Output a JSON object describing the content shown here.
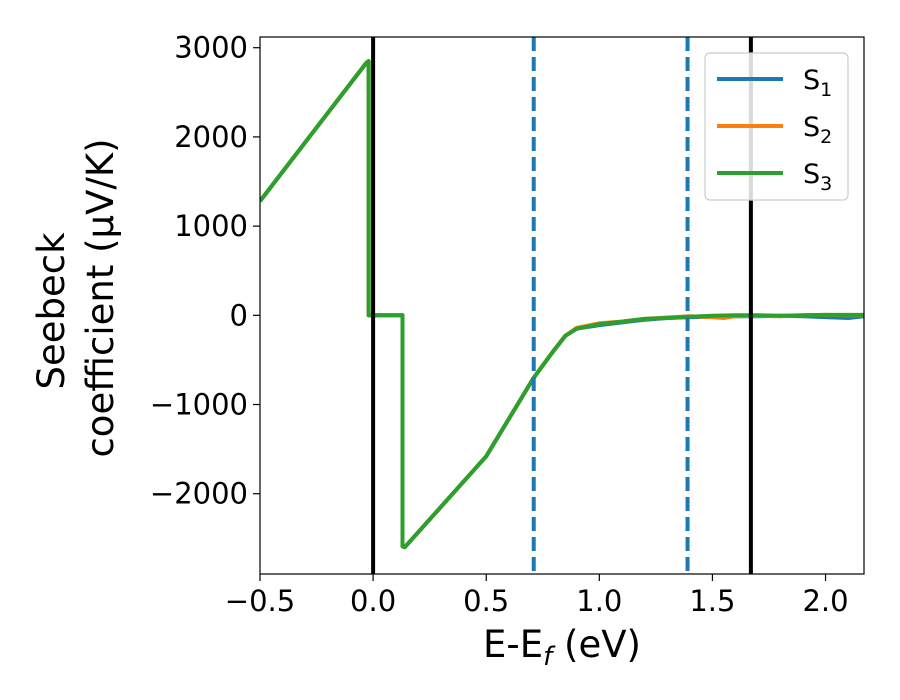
{
  "chart_data": {
    "type": "line",
    "xlabel_main": "E-E",
    "xlabel_sub": "f",
    "xlabel_unit": " (eV)",
    "ylabel_line1": "Seebeck",
    "ylabel_line2": "coefficient  (μV/K)",
    "xlim": [
      -0.5,
      2.17
    ],
    "ylim": [
      -2900,
      3120
    ],
    "x_ticks": [
      {
        "value": -0.5,
        "label": "−0.5"
      },
      {
        "value": 0.0,
        "label": "0.0"
      },
      {
        "value": 0.5,
        "label": "0.5"
      },
      {
        "value": 1.0,
        "label": "1.0"
      },
      {
        "value": 1.5,
        "label": "1.5"
      },
      {
        "value": 2.0,
        "label": "2.0"
      }
    ],
    "y_ticks": [
      {
        "value": -2000,
        "label": "−2000"
      },
      {
        "value": -1000,
        "label": "−1000"
      },
      {
        "value": 0,
        "label": "0"
      },
      {
        "value": 1000,
        "label": "1000"
      },
      {
        "value": 2000,
        "label": "2000"
      },
      {
        "value": 3000,
        "label": "3000"
      }
    ],
    "vlines": [
      {
        "x": 0.0,
        "style": "solid",
        "color": "#000000"
      },
      {
        "x": 1.67,
        "style": "solid",
        "color": "#000000"
      },
      {
        "x": 0.71,
        "style": "dashed",
        "color": "#1f77b4"
      },
      {
        "x": 1.39,
        "style": "dashed",
        "color": "#1f77b4"
      }
    ],
    "legend_position": "top-right",
    "series": [
      {
        "name": "S",
        "sub": "1",
        "color": "#1f77b4",
        "points": [
          [
            -0.5,
            1280
          ],
          [
            -0.03,
            2830
          ],
          [
            -0.02,
            2850
          ],
          [
            -0.02,
            0
          ],
          [
            0.13,
            0
          ],
          [
            0.13,
            -2590
          ],
          [
            0.14,
            -2600
          ],
          [
            0.5,
            -1580
          ],
          [
            0.71,
            -700
          ],
          [
            0.8,
            -390
          ],
          [
            0.85,
            -230
          ],
          [
            0.9,
            -150
          ],
          [
            1.0,
            -110
          ],
          [
            1.1,
            -80
          ],
          [
            1.2,
            -50
          ],
          [
            1.3,
            -30
          ],
          [
            1.4,
            -20
          ],
          [
            1.5,
            -15
          ],
          [
            1.6,
            -10
          ],
          [
            1.7,
            -10
          ],
          [
            1.8,
            -5
          ],
          [
            1.9,
            -10
          ],
          [
            2.0,
            -20
          ],
          [
            2.1,
            -30
          ],
          [
            2.17,
            -10
          ]
        ]
      },
      {
        "name": "S",
        "sub": "2",
        "color": "#ff7f0e",
        "points": [
          [
            -0.5,
            1280
          ],
          [
            -0.03,
            2830
          ],
          [
            -0.02,
            2850
          ],
          [
            -0.02,
            0
          ],
          [
            0.13,
            0
          ],
          [
            0.13,
            -2590
          ],
          [
            0.14,
            -2600
          ],
          [
            0.5,
            -1580
          ],
          [
            0.71,
            -700
          ],
          [
            0.8,
            -390
          ],
          [
            0.85,
            -230
          ],
          [
            0.9,
            -140
          ],
          [
            1.0,
            -90
          ],
          [
            1.1,
            -70
          ],
          [
            1.2,
            -40
          ],
          [
            1.3,
            -25
          ],
          [
            1.4,
            -10
          ],
          [
            1.5,
            -20
          ],
          [
            1.55,
            -30
          ],
          [
            1.6,
            -10
          ],
          [
            1.7,
            -5
          ],
          [
            1.8,
            -10
          ],
          [
            1.9,
            0
          ],
          [
            2.0,
            5
          ],
          [
            2.1,
            0
          ],
          [
            2.17,
            0
          ]
        ]
      },
      {
        "name": "S",
        "sub": "3",
        "color": "#2ca02c",
        "points": [
          [
            -0.5,
            1280
          ],
          [
            -0.03,
            2830
          ],
          [
            -0.02,
            2850
          ],
          [
            -0.02,
            0
          ],
          [
            0.13,
            0
          ],
          [
            0.13,
            -2590
          ],
          [
            0.14,
            -2600
          ],
          [
            0.5,
            -1580
          ],
          [
            0.71,
            -700
          ],
          [
            0.8,
            -390
          ],
          [
            0.85,
            -230
          ],
          [
            0.9,
            -150
          ],
          [
            1.0,
            -100
          ],
          [
            1.1,
            -70
          ],
          [
            1.2,
            -40
          ],
          [
            1.3,
            -30
          ],
          [
            1.4,
            -15
          ],
          [
            1.5,
            -5
          ],
          [
            1.6,
            0
          ],
          [
            1.7,
            0
          ],
          [
            1.8,
            -5
          ],
          [
            1.9,
            0
          ],
          [
            2.0,
            5
          ],
          [
            2.1,
            5
          ],
          [
            2.17,
            5
          ]
        ]
      }
    ]
  }
}
